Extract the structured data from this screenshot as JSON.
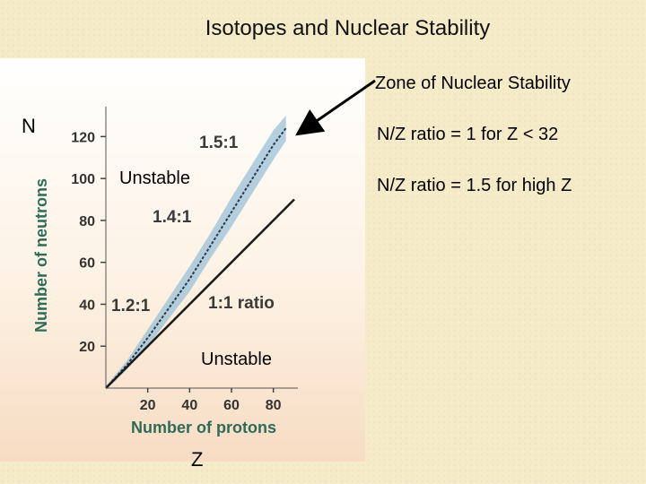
{
  "title": "Isotopes and Nuclear Stability",
  "notes": {
    "zone": "Zone of Nuclear Stability",
    "ratio_low": "N/Z ratio = 1 for Z < 32",
    "ratio_high": "N/Z ratio = 1.5 for high Z"
  },
  "labels": {
    "n_axis": "N",
    "z_axis": "Z",
    "unstable_top": "Unstable",
    "unstable_bottom": "Unstable"
  },
  "colors": {
    "band": "#9bc0d8",
    "axis_text": "#2f6b58",
    "line": "#1a1a1a"
  },
  "chart_data": {
    "type": "line",
    "xlabel": "Number of protons",
    "ylabel": "Number of neutrons",
    "xlim": [
      0,
      90
    ],
    "ylim": [
      0,
      130
    ],
    "xticks": [
      20,
      40,
      60,
      80
    ],
    "yticks": [
      20,
      40,
      60,
      80,
      100,
      120
    ],
    "series": [
      {
        "name": "1:1 ratio",
        "x": [
          0,
          90
        ],
        "y": [
          0,
          90
        ]
      },
      {
        "x": [
          0,
          10,
          20,
          30,
          40,
          50,
          60,
          70,
          80,
          86
        ],
        "y": [
          0,
          11,
          24,
          38,
          52,
          68,
          84,
          100,
          116,
          124
        ]
      }
    ],
    "annotations": [
      "1.2:1",
      "1.4:1",
      "1.5:1",
      "1:1 ratio"
    ]
  }
}
